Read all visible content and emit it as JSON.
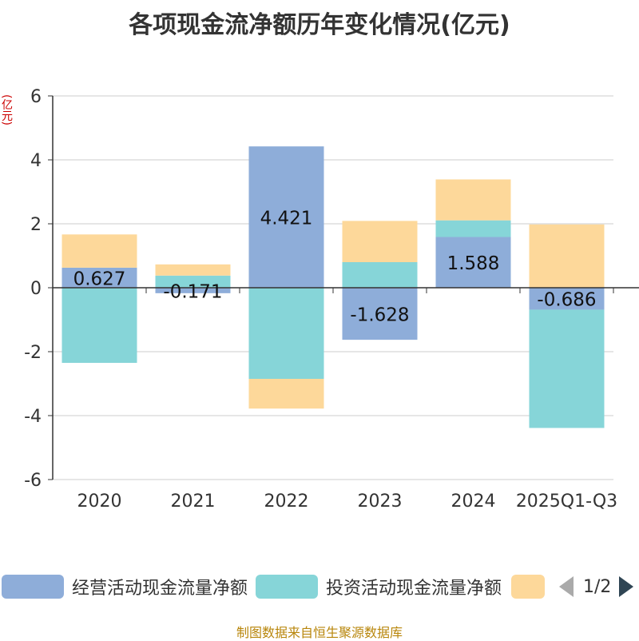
{
  "title": "各项现金流净额历年变化情况(亿元)",
  "unit_label": "(亿元)",
  "source": "制图数据来自恒生聚源数据库",
  "legend": {
    "items": [
      {
        "label": "经营活动现金流量净额",
        "color": "#8eadd9"
      },
      {
        "label": "投资活动现金流量净额",
        "color": "#86d5d8"
      },
      {
        "label": "",
        "color": "#fdd89a"
      }
    ],
    "page": "1/2"
  },
  "chart_data": {
    "type": "bar",
    "stacked": true,
    "categories": [
      "2020",
      "2021",
      "2022",
      "2023",
      "2024",
      "2025Q1-Q3"
    ],
    "ylim": [
      -6,
      6
    ],
    "yticks": [
      6,
      4,
      2,
      0,
      -2,
      -4,
      -6
    ],
    "grid": true,
    "legend_position": "bottom",
    "series": [
      {
        "name": "经营活动现金流量净额",
        "color": "#8eadd9",
        "values": [
          0.627,
          -0.171,
          4.421,
          -1.628,
          1.588,
          -0.686
        ],
        "show_labels": true
      },
      {
        "name": "投资活动现金流量净额",
        "color": "#86d5d8",
        "values": [
          -2.35,
          0.38,
          -2.85,
          0.8,
          0.52,
          -3.7
        ],
        "show_labels": false
      },
      {
        "color": "#fdd89a",
        "values": [
          1.04,
          0.35,
          -0.93,
          1.29,
          1.28,
          1.98
        ],
        "show_labels": false
      }
    ],
    "data_labels": [
      "0.627",
      "-0.171",
      "4.421",
      "-1.628",
      "1.588",
      "-0.686"
    ]
  }
}
